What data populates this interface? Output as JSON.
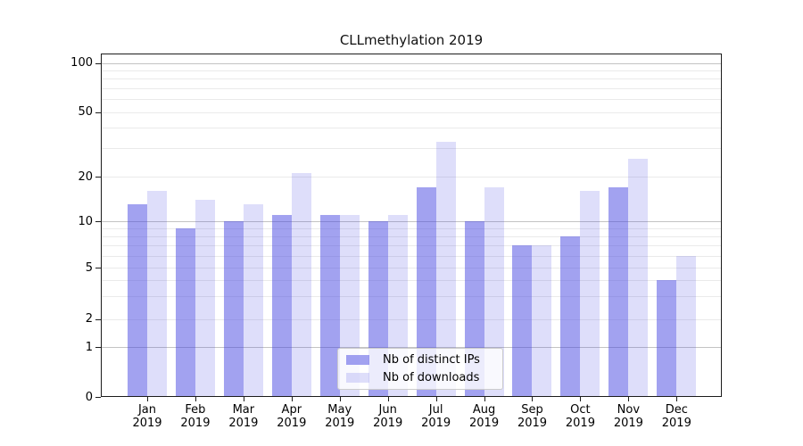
{
  "chart_data": {
    "type": "bar",
    "title": "CLLmethylation 2019",
    "categories": [
      "Jan",
      "Feb",
      "Mar",
      "Apr",
      "May",
      "Jun",
      "Jul",
      "Aug",
      "Sep",
      "Oct",
      "Nov",
      "Dec"
    ],
    "year_label": "2019",
    "series": [
      {
        "name": "Nb of distinct IPs",
        "color": "rgba(70,70,225,0.5)",
        "values": [
          13,
          9,
          10,
          11,
          11,
          10,
          17,
          10,
          7,
          8,
          17,
          4
        ]
      },
      {
        "name": "Nb of downloads",
        "color": "rgba(70,70,225,0.18)",
        "values": [
          16,
          14,
          13,
          21,
          11,
          11,
          33,
          17,
          7,
          16,
          26,
          6
        ]
      }
    ],
    "y_axis": {
      "ticks": [
        0,
        1,
        2,
        5,
        10,
        20,
        50,
        100
      ],
      "major_gridlines": [
        1,
        10,
        100
      ],
      "minor_gridlines": [
        2,
        3,
        4,
        5,
        6,
        7,
        8,
        9,
        20,
        30,
        40,
        50,
        60,
        70,
        80,
        90
      ],
      "major_grid_color": "#c3c3c3",
      "minor_grid_color": "#eaeaea",
      "ylim": [
        0,
        130
      ]
    },
    "legend": {
      "position": "lower-center"
    }
  }
}
